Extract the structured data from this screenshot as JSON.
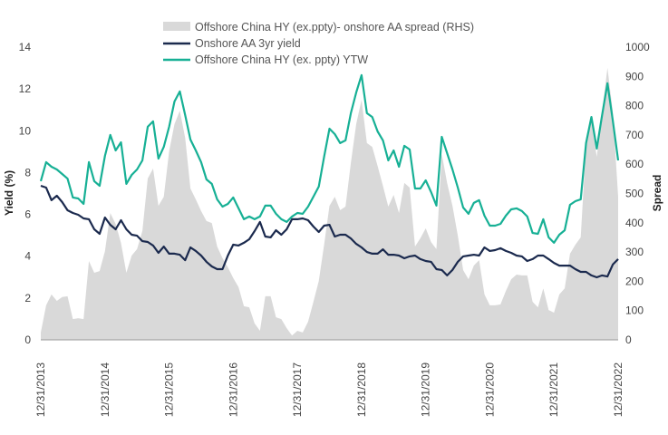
{
  "chart_data": {
    "type": "line",
    "title": "",
    "ylabel": "Yield (%)",
    "y2label": "Spread",
    "ylim": [
      0,
      14
    ],
    "y2lim": [
      0,
      1000
    ],
    "yticks": [
      "0",
      "2",
      "4",
      "6",
      "8",
      "10",
      "12",
      "14"
    ],
    "y2ticks": [
      "0",
      "100",
      "200",
      "300",
      "400",
      "500",
      "600",
      "700",
      "800",
      "900",
      "1000"
    ],
    "xticks": [
      "12/31/2013",
      "12/31/2014",
      "12/31/2015",
      "12/31/2016",
      "12/31/2017",
      "12/31/2018",
      "12/31/2019",
      "12/31/2020",
      "12/31/2021",
      "12/31/2022"
    ],
    "grid": false,
    "legend_position": "top",
    "x": [
      "2013-12",
      "2014-01",
      "2014-02",
      "2014-03",
      "2014-04",
      "2014-05",
      "2014-06",
      "2014-07",
      "2014-08",
      "2014-09",
      "2014-10",
      "2014-11",
      "2014-12",
      "2015-01",
      "2015-02",
      "2015-03",
      "2015-04",
      "2015-05",
      "2015-06",
      "2015-07",
      "2015-08",
      "2015-09",
      "2015-10",
      "2015-11",
      "2015-12",
      "2016-01",
      "2016-02",
      "2016-03",
      "2016-04",
      "2016-05",
      "2016-06",
      "2016-07",
      "2016-08",
      "2016-09",
      "2016-10",
      "2016-11",
      "2016-12",
      "2017-01",
      "2017-02",
      "2017-03",
      "2017-04",
      "2017-05",
      "2017-06",
      "2017-07",
      "2017-08",
      "2017-09",
      "2017-10",
      "2017-11",
      "2017-12",
      "2018-01",
      "2018-02",
      "2018-03",
      "2018-04",
      "2018-05",
      "2018-06",
      "2018-07",
      "2018-08",
      "2018-09",
      "2018-10",
      "2018-11",
      "2018-12",
      "2019-01",
      "2019-02",
      "2019-03",
      "2019-04",
      "2019-05",
      "2019-06",
      "2019-07",
      "2019-08",
      "2019-09",
      "2019-10",
      "2019-11",
      "2019-12",
      "2020-01",
      "2020-02",
      "2020-03",
      "2020-04",
      "2020-05",
      "2020-06",
      "2020-07",
      "2020-08",
      "2020-09",
      "2020-10",
      "2020-11",
      "2020-12",
      "2021-01",
      "2021-02",
      "2021-03",
      "2021-04",
      "2021-05",
      "2021-06",
      "2021-07",
      "2021-08",
      "2021-09",
      "2021-10",
      "2021-11",
      "2021-12",
      "2022-01",
      "2022-02",
      "2022-03",
      "2022-04",
      "2022-05",
      "2022-06",
      "2022-07",
      "2022-08",
      "2022-09",
      "2022-10",
      "2022-11",
      "2022-12"
    ],
    "series": [
      {
        "name": "Offshore China HY (ex.ppty)- onshore AA spread (RHS)",
        "type": "area",
        "axis": "right",
        "color": "#d9d9d9",
        "values": [
          25,
          118,
          155,
          133,
          146,
          149,
          71,
          74,
          71,
          269,
          229,
          235,
          303,
          433,
          396,
          331,
          229,
          288,
          310,
          372,
          551,
          585,
          458,
          489,
          644,
          737,
          783,
          690,
          517,
          480,
          440,
          406,
          399,
          319,
          279,
          248,
          211,
          180,
          115,
          111,
          56,
          31,
          149,
          149,
          77,
          71,
          40,
          15,
          31,
          25,
          62,
          130,
          201,
          325,
          458,
          489,
          443,
          455,
          604,
          737,
          820,
          672,
          659,
          594,
          526,
          455,
          495,
          433,
          536,
          520,
          319,
          347,
          381,
          334,
          310,
          635,
          536,
          458,
          356,
          238,
          207,
          254,
          272,
          155,
          118,
          118,
          121,
          167,
          207,
          223,
          220,
          220,
          130,
          111,
          176,
          102,
          93,
          155,
          176,
          294,
          325,
          350,
          666,
          749,
          625,
          780,
          929,
          780,
          489
        ]
      },
      {
        "name": "Onshore AA 3yr yield",
        "type": "line",
        "axis": "left",
        "color": "#1b2a4e",
        "values": [
          7.37,
          7.28,
          6.68,
          6.89,
          6.59,
          6.2,
          6.07,
          5.98,
          5.81,
          5.77,
          5.29,
          5.07,
          5.85,
          5.5,
          5.29,
          5.72,
          5.29,
          5.03,
          4.98,
          4.72,
          4.68,
          4.51,
          4.16,
          4.46,
          4.12,
          4.12,
          4.07,
          3.81,
          4.42,
          4.25,
          4.03,
          3.73,
          3.51,
          3.38,
          3.38,
          4.03,
          4.55,
          4.51,
          4.64,
          4.81,
          5.2,
          5.64,
          4.94,
          4.9,
          5.24,
          5.03,
          5.29,
          5.77,
          5.77,
          5.81,
          5.72,
          5.42,
          5.16,
          5.46,
          5.5,
          4.94,
          5.03,
          5.03,
          4.85,
          4.59,
          4.42,
          4.2,
          4.12,
          4.12,
          4.33,
          4.07,
          4.07,
          4.03,
          3.9,
          3.99,
          4.03,
          3.86,
          3.77,
          3.73,
          3.38,
          3.34,
          3.08,
          3.34,
          3.73,
          3.99,
          4.03,
          4.07,
          4.03,
          4.42,
          4.25,
          4.29,
          4.38,
          4.25,
          4.16,
          4.03,
          3.99,
          3.77,
          3.86,
          4.03,
          4.03,
          3.86,
          3.68,
          3.55,
          3.55,
          3.55,
          3.38,
          3.25,
          3.25,
          3.08,
          2.99,
          3.08,
          3.03,
          3.6,
          3.86
        ]
      },
      {
        "name": "Offshore China HY (ex. ppty) YTW",
        "type": "line",
        "axis": "left",
        "color": "#17b095",
        "values": [
          7.59,
          8.5,
          8.28,
          8.15,
          7.93,
          7.71,
          6.81,
          6.76,
          6.5,
          8.5,
          7.59,
          7.37,
          8.8,
          9.8,
          9.06,
          9.45,
          7.46,
          7.89,
          8.15,
          8.58,
          10.19,
          10.45,
          8.67,
          9.23,
          10.19,
          11.4,
          11.88,
          10.75,
          9.58,
          9.06,
          8.5,
          7.67,
          7.46,
          6.72,
          6.37,
          6.5,
          6.81,
          6.29,
          5.77,
          5.9,
          5.77,
          5.9,
          6.42,
          6.42,
          6.03,
          5.77,
          5.64,
          5.9,
          6.07,
          6.03,
          6.37,
          6.85,
          7.33,
          8.76,
          10.1,
          9.84,
          9.41,
          9.54,
          10.84,
          11.83,
          12.66,
          10.84,
          10.66,
          9.97,
          9.54,
          8.58,
          9.06,
          8.28,
          9.28,
          9.1,
          7.24,
          7.24,
          7.63,
          7.07,
          6.42,
          9.71,
          8.93,
          8.15,
          7.28,
          6.33,
          6.03,
          6.55,
          6.68,
          5.94,
          5.46,
          5.46,
          5.55,
          5.94,
          6.24,
          6.29,
          6.16,
          5.9,
          5.11,
          5.07,
          5.77,
          4.9,
          4.64,
          5.03,
          5.24,
          6.46,
          6.63,
          6.72,
          9.41,
          10.66,
          9.15,
          10.75,
          12.27,
          10.49,
          8.58
        ]
      }
    ]
  }
}
